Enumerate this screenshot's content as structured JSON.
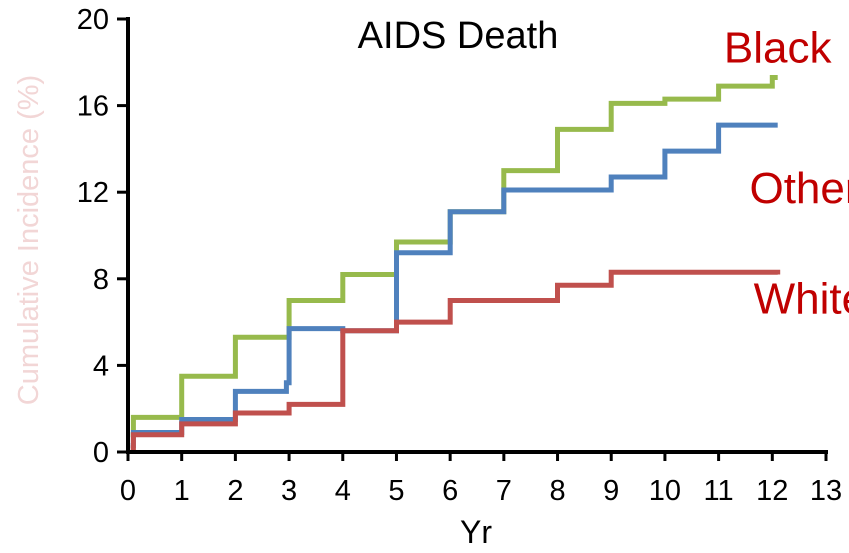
{
  "chart_data": {
    "type": "line",
    "step": true,
    "title": "AIDS Death",
    "xlabel": "Yr",
    "ylabel": "Cumulative Incidence (%)",
    "xlim": [
      0,
      13
    ],
    "ylim": [
      0,
      20
    ],
    "xticks": [
      "0",
      "1",
      "2",
      "3",
      "4",
      "5",
      "6",
      "7",
      "8",
      "9",
      "10",
      "11",
      "12",
      "13"
    ],
    "yticks": [
      "0",
      "4",
      "8",
      "12",
      "16",
      "20"
    ],
    "grid": false,
    "legend": "inline labels at right",
    "series": [
      {
        "name": "Black",
        "color": "#97BA4C",
        "x": [
          0.05,
          0.1,
          1,
          2,
          3,
          4,
          5,
          6,
          7,
          8,
          9,
          10,
          11,
          12,
          12.1
        ],
        "y": [
          0.8,
          1.6,
          3.5,
          5.3,
          7.0,
          8.2,
          9.7,
          11.1,
          13.0,
          14.9,
          16.1,
          16.3,
          16.9,
          17.3,
          17.3
        ]
      },
      {
        "name": "Other",
        "color": "#4F81BD",
        "x": [
          0.05,
          0.1,
          1,
          2,
          2.95,
          3,
          4,
          5,
          6,
          7,
          9,
          10,
          11,
          12.1
        ],
        "y": [
          0.3,
          0.9,
          1.5,
          2.8,
          3.2,
          5.7,
          5.6,
          9.2,
          11.1,
          12.1,
          12.7,
          13.9,
          15.1,
          15.1
        ]
      },
      {
        "name": "White",
        "color": "#C0504D",
        "x": [
          0.05,
          0.1,
          1,
          2,
          3,
          4,
          5,
          6,
          8,
          9,
          12.1
        ],
        "y": [
          0.2,
          0.8,
          1.3,
          1.8,
          2.2,
          5.6,
          6.0,
          7.0,
          7.7,
          8.3,
          8.2
        ]
      }
    ],
    "series_labels": [
      {
        "text": "Black",
        "color": "#C00000",
        "anchor_x": 12.1,
        "anchor_y": 18.0
      },
      {
        "text": "Other",
        "color": "#C00000",
        "anchor_x": 12.6,
        "anchor_y": 11.5
      },
      {
        "text": "White",
        "color": "#C00000",
        "anchor_x": 12.7,
        "anchor_y": 6.4
      }
    ],
    "ylabel_color": "#F2D6D6"
  }
}
